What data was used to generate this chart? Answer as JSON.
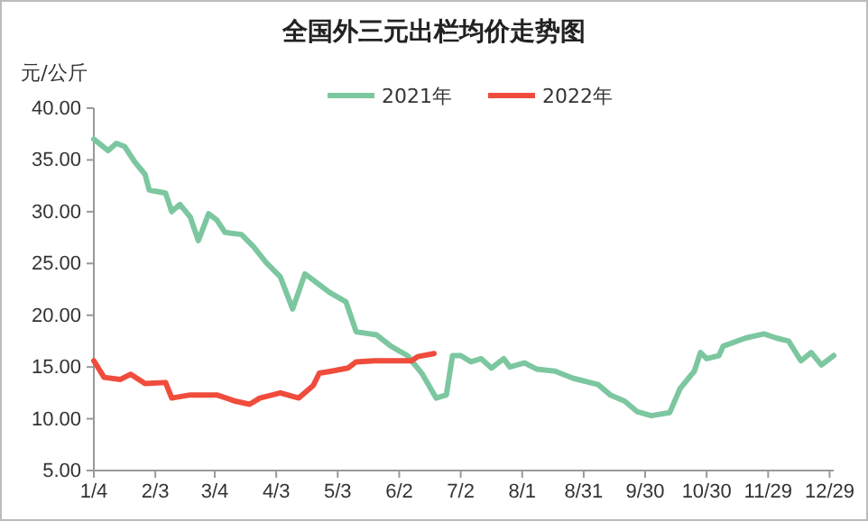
{
  "chart_data": {
    "type": "line",
    "title": "全国外三元出栏均价走势图",
    "ylabel": "元/公斤",
    "legend": "top",
    "grid": false,
    "marker": "none",
    "line_style": "solid",
    "xlim": [
      "--01-04",
      "--12-31"
    ],
    "xticks": [
      {
        "value": "--01-04",
        "label": "1/4"
      },
      {
        "value": "--02-03",
        "label": "2/3"
      },
      {
        "value": "--03-04",
        "label": "3/4"
      },
      {
        "value": "--04-03",
        "label": "4/3"
      },
      {
        "value": "--05-03",
        "label": "5/3"
      },
      {
        "value": "--06-02",
        "label": "6/2"
      },
      {
        "value": "--07-02",
        "label": "7/2"
      },
      {
        "value": "--08-01",
        "label": "8/1"
      },
      {
        "value": "--08-31",
        "label": "8/31"
      },
      {
        "value": "--09-30",
        "label": "9/30"
      },
      {
        "value": "--10-30",
        "label": "10/30"
      },
      {
        "value": "--11-29",
        "label": "11/29"
      },
      {
        "value": "--12-29",
        "label": "12/29"
      }
    ],
    "ylim": [
      5,
      40
    ],
    "yticks": [
      {
        "value": 5,
        "label": "5.00"
      },
      {
        "value": 10,
        "label": "10.00"
      },
      {
        "value": 15,
        "label": "15.00"
      },
      {
        "value": 20,
        "label": "20.00"
      },
      {
        "value": 25,
        "label": "25.00"
      },
      {
        "value": 30,
        "label": "30.00"
      },
      {
        "value": 35,
        "label": "35.00"
      },
      {
        "value": 40,
        "label": "40.00"
      }
    ],
    "series": [
      {
        "name": "2021年",
        "color": "#7cc7a0",
        "x": [
          "--01-04",
          "--01-11",
          "--01-15",
          "--01-19",
          "--01-24",
          "--01-29",
          "--01-31",
          "--02-08",
          "--02-11",
          "--02-15",
          "--02-20",
          "--02-24",
          "--03-01",
          "--03-05",
          "--03-09",
          "--03-17",
          "--03-23",
          "--03-29",
          "--04-05",
          "--04-11",
          "--04-17",
          "--04-21",
          "--04-29",
          "--05-07",
          "--05-12",
          "--05-22",
          "--05-29",
          "--06-06",
          "--06-13",
          "--06-20",
          "--06-25",
          "--06-28",
          "--07-02",
          "--07-07",
          "--07-12",
          "--07-17",
          "--07-23",
          "--07-26",
          "--08-02",
          "--08-08",
          "--08-17",
          "--08-26",
          "--09-07",
          "--09-13",
          "--09-20",
          "--09-26",
          "--10-03",
          "--10-12",
          "--10-17",
          "--10-24",
          "--10-27",
          "--10-30",
          "--11-05",
          "--11-07",
          "--11-18",
          "--11-27",
          "--12-03",
          "--12-09",
          "--12-15",
          "--12-20",
          "--12-25",
          "--12-31"
        ],
        "values": [
          37.0,
          35.9,
          36.6,
          36.3,
          34.8,
          33.6,
          32.1,
          31.8,
          30.0,
          30.7,
          29.5,
          27.2,
          29.8,
          29.2,
          28.0,
          27.8,
          26.6,
          25.1,
          23.7,
          20.6,
          24.0,
          23.4,
          22.2,
          21.3,
          18.4,
          18.1,
          17.0,
          16.1,
          14.4,
          12.0,
          12.3,
          16.1,
          16.1,
          15.5,
          15.8,
          14.9,
          15.8,
          15.0,
          15.4,
          14.8,
          14.6,
          13.9,
          13.3,
          12.3,
          11.7,
          10.7,
          10.3,
          10.6,
          12.9,
          14.6,
          16.4,
          15.8,
          16.1,
          17.0,
          17.8,
          18.2,
          17.8,
          17.5,
          15.6,
          16.4,
          15.2,
          16.1
        ]
      },
      {
        "name": "2022年",
        "color": "#f04c3c",
        "x": [
          "--01-04",
          "--01-09",
          "--01-17",
          "--01-22",
          "--01-29",
          "--02-08",
          "--02-11",
          "--02-20",
          "--03-05",
          "--03-14",
          "--03-21",
          "--03-26",
          "--04-05",
          "--04-14",
          "--04-21",
          "--04-24",
          "--04-30",
          "--05-08",
          "--05-12",
          "--05-21",
          "--05-30",
          "--06-08",
          "--06-11",
          "--06-19"
        ],
        "values": [
          15.6,
          14.0,
          13.8,
          14.3,
          13.4,
          13.5,
          12.0,
          12.3,
          12.3,
          11.7,
          11.4,
          12.0,
          12.5,
          12.0,
          13.2,
          14.4,
          14.6,
          14.9,
          15.5,
          15.6,
          15.6,
          15.6,
          16.0,
          16.3
        ]
      }
    ]
  }
}
